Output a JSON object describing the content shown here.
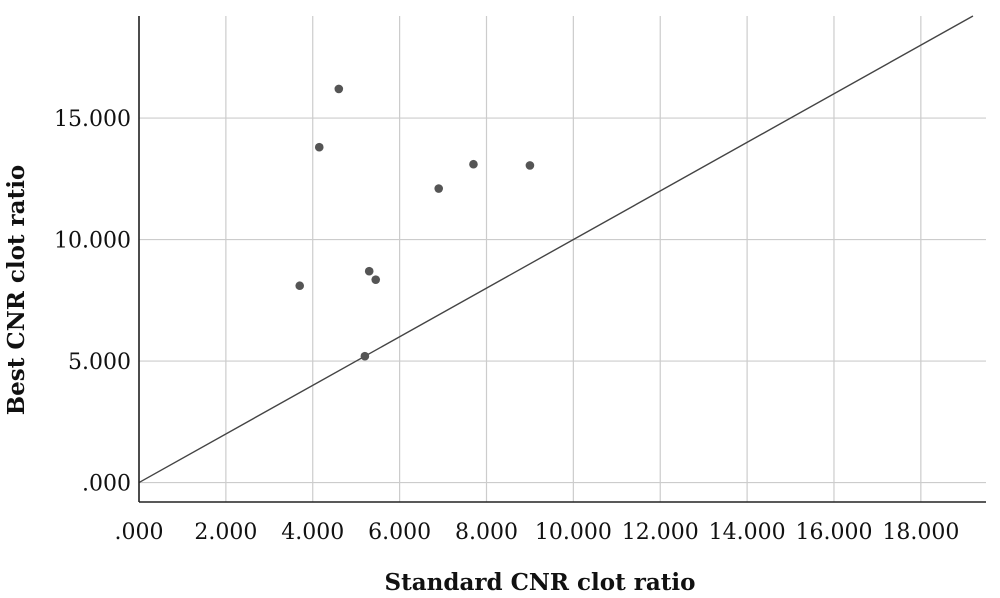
{
  "chart_data": {
    "type": "scatter",
    "title": "",
    "xlabel": "Standard CNR clot ratio",
    "ylabel": "Best CNR clot ratio",
    "xlim": [
      0,
      19.5
    ],
    "ylim": [
      -0.8,
      19.2
    ],
    "x_ticks": [
      0,
      2,
      4,
      6,
      8,
      10,
      12,
      14,
      16,
      18
    ],
    "x_tick_labels": [
      ".000",
      "2.000",
      "4.000",
      "6.000",
      "8.000",
      "10.000",
      "12.000",
      "14.000",
      "16.000",
      "18.000"
    ],
    "y_ticks": [
      0,
      5,
      10,
      15
    ],
    "y_tick_labels": [
      ".000",
      "5.000",
      "10.000",
      "15.000"
    ],
    "grid": true,
    "reference_line": {
      "type": "identity",
      "slope": 1,
      "intercept": 0
    },
    "colors": {
      "points": "#555555",
      "grid": "#cccccc",
      "axis": "#222222",
      "reference_line": "#444444"
    },
    "points": [
      {
        "x": 3.7,
        "y": 8.1
      },
      {
        "x": 4.15,
        "y": 13.8
      },
      {
        "x": 4.6,
        "y": 16.2
      },
      {
        "x": 5.2,
        "y": 5.2
      },
      {
        "x": 5.3,
        "y": 8.7
      },
      {
        "x": 5.45,
        "y": 8.35
      },
      {
        "x": 6.9,
        "y": 12.1
      },
      {
        "x": 7.7,
        "y": 13.1
      },
      {
        "x": 9.0,
        "y": 13.05
      }
    ]
  }
}
